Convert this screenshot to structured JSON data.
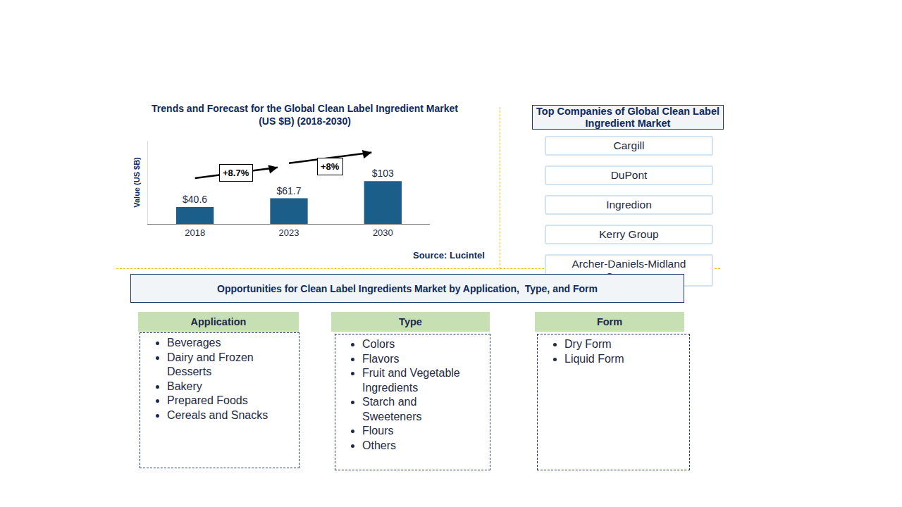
{
  "chart_data": {
    "type": "bar",
    "title": "Trends and Forecast for the Global Clean Label Ingredient Market (US $B) (2018-2030)",
    "y_label": "Value (US $B)",
    "categories": [
      "2018",
      "2023",
      "2030"
    ],
    "values": [
      40.6,
      61.7,
      103
    ],
    "value_labels": [
      "$40.6",
      "$61.7",
      "$103"
    ],
    "data_labels": true,
    "color": "#1b5e8a",
    "ylim": [
      0,
      200
    ],
    "yticks": [],
    "tick_labels": "x",
    "grid": false,
    "annotations": [
      {
        "text": "+8.7%",
        "from": "2018",
        "to": "2023"
      },
      {
        "text": "+8%",
        "from": "2023",
        "to": "2030"
      }
    ],
    "source": "Source: Lucintel"
  },
  "companies": {
    "title": "Top Companies of Global Clean Label Ingredient Market",
    "items": [
      "Cargill",
      "DuPont",
      "Ingredion",
      "Kerry Group",
      "Archer-Daniels-Midland Company"
    ]
  },
  "opportunities": {
    "title": "Opportunities for Clean Label Ingredients Market by Application,  Type, and Form",
    "columns": [
      {
        "header": "Application",
        "items": [
          "Beverages",
          "Dairy and Frozen Desserts",
          "Bakery",
          "Prepared Foods",
          "Cereals and Snacks"
        ]
      },
      {
        "header": "Type",
        "items": [
          "Colors",
          "Flavors",
          "Fruit and Vegetable Ingredients",
          "Starch and Sweeteners",
          "Flours",
          "Others"
        ]
      },
      {
        "header": "Form",
        "items": [
          "Dry Form",
          "Liquid Form"
        ]
      }
    ]
  }
}
